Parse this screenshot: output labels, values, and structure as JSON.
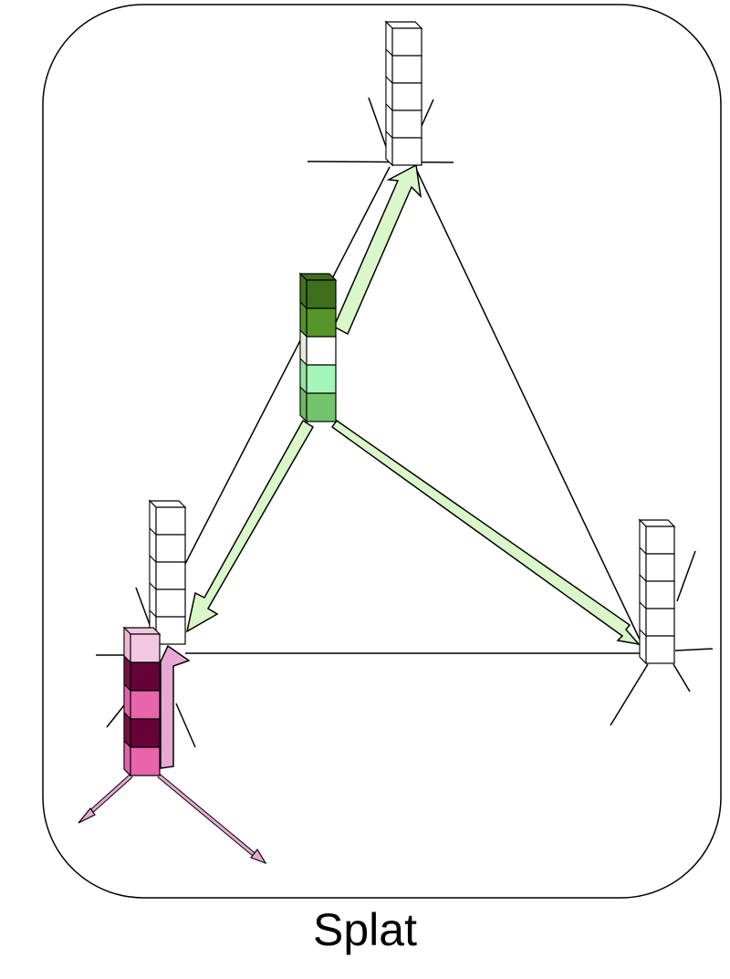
{
  "caption": "Splat",
  "colors": {
    "outline": "#000000",
    "green_arrow_fill": "#d9f7c8",
    "pink_arrow_fill": "#e8a8d4",
    "empty_cell": "#ffffff"
  },
  "stacks": [
    {
      "id": "top",
      "cells": [
        "#ffffff",
        "#ffffff",
        "#ffffff",
        "#ffffff",
        "#ffffff"
      ],
      "top_face": "#ffffff",
      "side_face": "#ffffff"
    },
    {
      "id": "center",
      "cells": [
        "#3f6e1d",
        "#55952a",
        "#ffffff",
        "#a3f5b8",
        "#73c46c"
      ],
      "top_face": "#3f6e1d",
      "side_face": "#4d8526"
    },
    {
      "id": "left",
      "cells": [
        "#ffffff",
        "#ffffff",
        "#ffffff",
        "#ffffff",
        "#ffffff"
      ],
      "top_face": "#ffffff",
      "side_face": "#ffffff"
    },
    {
      "id": "right",
      "cells": [
        "#ffffff",
        "#ffffff",
        "#ffffff",
        "#ffffff",
        "#ffffff"
      ],
      "top_face": "#ffffff",
      "side_face": "#ffffff"
    },
    {
      "id": "splat",
      "cells": [
        "#f2c8e1",
        "#650237",
        "#e864ab",
        "#650237",
        "#e864ab"
      ],
      "top_face": "#f2c8e1",
      "side_face": "#d45a9e"
    }
  ]
}
